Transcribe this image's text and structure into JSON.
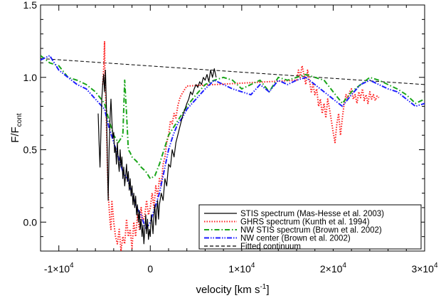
{
  "chart_data": {
    "type": "line",
    "title": "",
    "xlabel": "velocity [km s",
    "xlabel_sup": "-1",
    "xlabel_end": "]",
    "ylabel": "F/F",
    "ylabel_sub": "cont",
    "xlim": [
      -12000,
      30000
    ],
    "ylim": [
      -0.2,
      1.5
    ],
    "x_ticks": [
      {
        "value": -10000,
        "base": "-1×10",
        "exp": "4"
      },
      {
        "value": 0,
        "base": "0",
        "exp": ""
      },
      {
        "value": 10000,
        "base": "1×10",
        "exp": "4"
      },
      {
        "value": 20000,
        "base": "2×10",
        "exp": "4"
      },
      {
        "value": 30000,
        "base": "3×10",
        "exp": "4"
      }
    ],
    "y_ticks": [
      {
        "value": 0.0,
        "label": "0.0"
      },
      {
        "value": 0.5,
        "label": "0.5"
      },
      {
        "value": 1.0,
        "label": "1.0"
      },
      {
        "value": 1.5,
        "label": "1.5"
      }
    ],
    "grid": false,
    "legend_position": "bottom-right",
    "series": [
      {
        "name": "STIS spectrum (Mas-Hesse et al. 2003)",
        "color": "#000000",
        "dash": "solid",
        "x": [
          -5700,
          -5600,
          -5500,
          -5400,
          -5300,
          -5200,
          -5100,
          -5000,
          -4900,
          -4800,
          -4700,
          -4600,
          -4500,
          -4400,
          -4300,
          -4200,
          -4100,
          -4000,
          -3900,
          -3800,
          -3700,
          -3600,
          -3500,
          -3400,
          -3300,
          -3200,
          -3100,
          -3000,
          -2900,
          -2800,
          -2700,
          -2600,
          -2500,
          -2400,
          -2300,
          -2200,
          -2100,
          -2000,
          -1900,
          -1800,
          -1700,
          -1600,
          -1500,
          -1400,
          -1300,
          -1200,
          -1100,
          -1000,
          -900,
          -800,
          -700,
          -600,
          -500,
          -400,
          -300,
          -200,
          -100,
          0,
          100,
          200,
          300,
          400,
          500,
          600,
          700,
          800,
          900,
          1000,
          1200,
          1400,
          1600,
          1800,
          2000,
          2200,
          2400,
          2600,
          2800,
          3000,
          3200,
          3400,
          3600,
          3800,
          4000,
          4200,
          4400,
          4600,
          4800,
          5000,
          5200,
          5400,
          5600,
          5800,
          6000,
          6200,
          6400,
          6600,
          6800,
          7000,
          7200
        ],
        "y": [
          0.75,
          0.55,
          0.38,
          0.62,
          0.85,
          0.95,
          1.02,
          0.9,
          1.05,
          0.8,
          0.45,
          0.15,
          0.5,
          0.72,
          0.85,
          0.7,
          0.58,
          0.62,
          0.48,
          0.52,
          0.4,
          0.55,
          0.42,
          0.35,
          0.5,
          0.38,
          0.45,
          0.3,
          0.38,
          0.25,
          0.32,
          0.4,
          0.28,
          0.35,
          0.22,
          0.3,
          0.18,
          0.25,
          0.12,
          0.2,
          0.1,
          0.18,
          0.05,
          0.12,
          0.0,
          0.08,
          -0.05,
          0.02,
          -0.1,
          -0.02,
          -0.15,
          -0.05,
          0.05,
          -0.08,
          0.02,
          -0.12,
          -0.05,
          -0.1,
          0.05,
          0.0,
          -0.08,
          0.05,
          0.12,
          -0.02,
          0.08,
          0.15,
          0.02,
          0.12,
          0.2,
          0.15,
          0.3,
          0.25,
          0.4,
          0.38,
          0.5,
          0.45,
          0.55,
          0.6,
          0.65,
          0.7,
          0.75,
          0.78,
          0.82,
          0.85,
          0.9,
          0.88,
          0.92,
          0.95,
          0.93,
          0.97,
          0.95,
          1.0,
          0.98,
          1.02,
          0.97,
          1.05,
          1.0,
          1.06,
          1.0
        ]
      },
      {
        "name": "GHRS spectrum (Kunth et al. 1994)",
        "color": "#ff2020",
        "dash": "dotted",
        "x": [
          -5200,
          -5100,
          -5000,
          -4950,
          -4900,
          -4800,
          -4700,
          -4600,
          -4500,
          -4400,
          -4300,
          -4200,
          -4000,
          -3800,
          -3600,
          -3400,
          -3200,
          -3000,
          -2800,
          -2600,
          -2400,
          -2200,
          -2000,
          -1800,
          -1600,
          -1400,
          -1200,
          -1000,
          -800,
          -600,
          -400,
          -200,
          0,
          200,
          400,
          600,
          800,
          1000,
          1200,
          1400,
          1600,
          1800,
          2000,
          2200,
          2400,
          2600,
          2800,
          3000,
          3200,
          3400,
          3600,
          3800,
          4000,
          16000,
          16200,
          16400,
          16600,
          16800,
          17000,
          17200,
          17400,
          17600,
          17800,
          18000,
          18200,
          18400,
          18600,
          18800,
          19000,
          19200,
          19400,
          19600,
          19800,
          20000,
          20200,
          20400,
          20600,
          20800,
          21000,
          21200,
          21400,
          21600,
          21800,
          22000,
          22200,
          22400,
          22600,
          22800,
          23000,
          23200,
          23400,
          23600,
          23800,
          24000,
          24200,
          24400,
          24600,
          24800,
          25000
        ],
        "y": [
          0.95,
          1.05,
          1.25,
          1.0,
          0.9,
          0.7,
          0.4,
          0.2,
          0.1,
          0.0,
          -0.05,
          0.15,
          0.0,
          -0.1,
          -0.15,
          -0.05,
          -0.2,
          -0.1,
          -0.15,
          0.02,
          -0.1,
          -0.05,
          -0.18,
          0.0,
          -0.1,
          0.05,
          -0.05,
          0.1,
          0.0,
          0.05,
          0.15,
          0.05,
          0.1,
          0.2,
          0.1,
          0.25,
          0.18,
          0.3,
          0.25,
          0.4,
          0.45,
          0.55,
          0.6,
          0.7,
          0.68,
          0.75,
          0.72,
          0.8,
          0.85,
          0.88,
          0.9,
          0.92,
          0.94,
          0.98,
          1.05,
          1.0,
          1.08,
          1.02,
          0.95,
          1.05,
          0.98,
          0.9,
          0.95,
          0.88,
          0.92,
          0.8,
          0.85,
          0.75,
          0.82,
          0.72,
          0.85,
          0.78,
          0.7,
          0.62,
          0.55,
          0.68,
          0.75,
          0.6,
          0.72,
          0.82,
          0.88,
          0.85,
          0.9,
          0.92,
          0.85,
          0.88,
          0.82,
          0.9,
          0.86,
          0.92,
          0.84,
          0.88,
          0.82,
          0.9,
          0.85,
          0.88,
          0.84,
          0.87,
          0.86
        ]
      },
      {
        "name": "NW STIS spectrum (Brown et al. 2002)",
        "color": "#1aa51a",
        "dash": "dashdot",
        "x": [
          -12000,
          -11000,
          -10000,
          -9000,
          -8000,
          -7000,
          -6000,
          -5000,
          -4500,
          -4000,
          -3500,
          -3000,
          -2800,
          -2600,
          -2400,
          -2200,
          -2000,
          -1500,
          -1000,
          -500,
          0,
          500,
          1000,
          1500,
          2000,
          2500,
          3000,
          3500,
          4000,
          5000,
          6000,
          7000,
          8000,
          9000,
          10000,
          11000,
          12000,
          13000,
          14000,
          15000,
          16000,
          17000,
          18000,
          19000,
          20000,
          21000,
          22000,
          23000,
          24000,
          25000,
          26000,
          27000,
          28000,
          29000,
          30000
        ],
        "y": [
          1.15,
          1.1,
          1.08,
          1.0,
          0.98,
          0.95,
          0.9,
          0.82,
          0.7,
          0.6,
          0.55,
          0.6,
          0.98,
          0.75,
          0.5,
          0.48,
          0.45,
          0.42,
          0.38,
          0.35,
          0.3,
          0.32,
          0.4,
          0.5,
          0.6,
          0.65,
          0.7,
          0.75,
          0.8,
          0.88,
          0.95,
          0.98,
          1.0,
          0.98,
          0.92,
          0.95,
          0.98,
          0.9,
          1.0,
          0.98,
          1.0,
          1.02,
          1.0,
          0.98,
          0.9,
          0.82,
          0.9,
          0.95,
          1.0,
          0.98,
          0.95,
          0.92,
          0.88,
          0.82,
          0.85
        ]
      },
      {
        "name": "NW center (Brown et al. 2002)",
        "color": "#1e1eff",
        "dash": "dashdotdot",
        "x": [
          -12000,
          -11000,
          -10000,
          -9000,
          -8000,
          -7000,
          -6000,
          -5000,
          -4500,
          -4000,
          -3500,
          -3000,
          -2500,
          -2000,
          -1500,
          -1000,
          -500,
          0,
          500,
          1000,
          1500,
          2000,
          2500,
          3000,
          3500,
          4000,
          5000,
          6000,
          7000,
          8000,
          9000,
          10000,
          11000,
          12000,
          13000,
          14000,
          15000,
          16000,
          17000,
          18000,
          19000,
          20000,
          21000,
          22000,
          23000,
          24000,
          25000,
          26000,
          27000,
          28000,
          29000,
          30000
        ],
        "y": [
          1.12,
          1.15,
          1.05,
          1.0,
          0.95,
          0.92,
          0.85,
          0.78,
          0.65,
          0.55,
          0.45,
          0.35,
          0.3,
          0.2,
          0.1,
          0.05,
          -0.05,
          0.0,
          0.1,
          0.2,
          0.35,
          0.5,
          0.6,
          0.68,
          0.72,
          0.78,
          0.85,
          0.92,
          0.98,
          0.95,
          0.92,
          0.9,
          0.88,
          0.95,
          0.9,
          0.98,
          0.95,
          0.98,
          1.0,
          0.95,
          0.9,
          0.85,
          0.8,
          0.88,
          0.95,
          0.98,
          0.95,
          0.92,
          0.9,
          0.85,
          0.8,
          0.82
        ]
      },
      {
        "name": "Fitted continuum",
        "color": "#000000",
        "dash": "dashed",
        "x": [
          -12000,
          30000
        ],
        "y": [
          1.13,
          0.95
        ]
      }
    ]
  }
}
